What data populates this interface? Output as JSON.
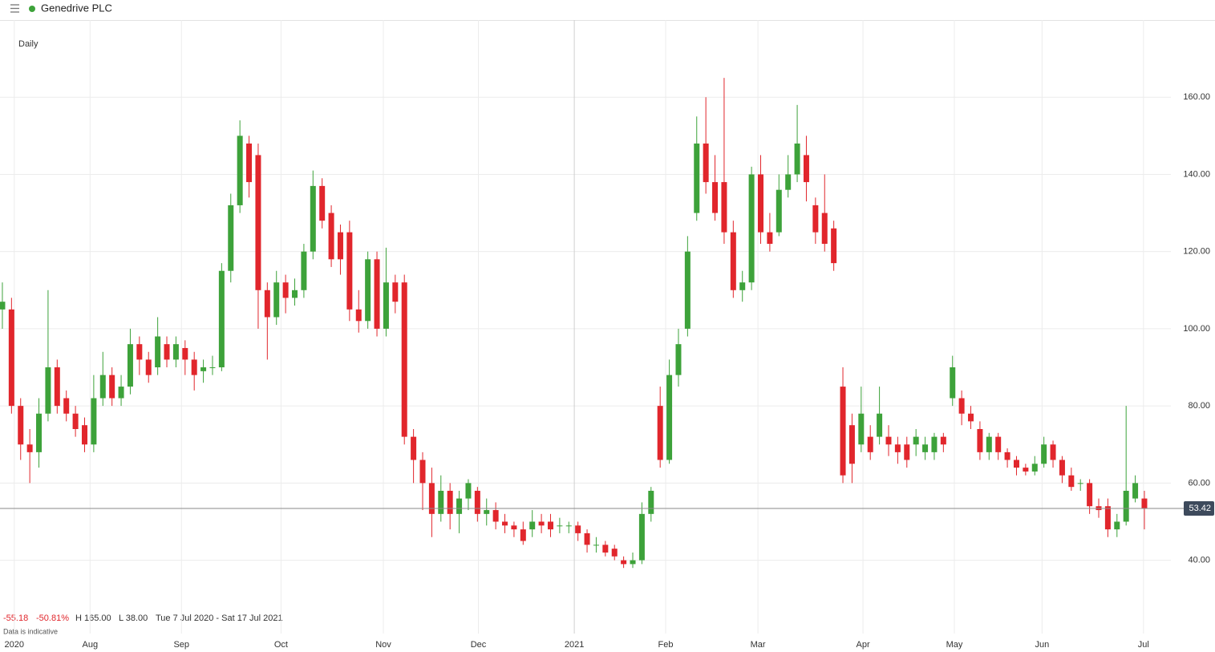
{
  "chart_data": {
    "type": "candlestick",
    "title": "Genedrive PLC",
    "interval": "Daily",
    "stats": {
      "change": -55.18,
      "change_pct": {
        "value": -50.81,
        "label": "-50.81%"
      },
      "high": {
        "value": 165,
        "label": "H 165.00"
      },
      "low": {
        "value": 38,
        "label": "L 38.00"
      },
      "range": "Tue 7 Jul 2020 - Sat 17 Jul 2021"
    },
    "note": "Data is indicative",
    "last_price": 53.42,
    "up_color": "#3da23a",
    "down_color": "#e1262c",
    "grid": true,
    "ylim": [
      21,
      180
    ],
    "yticks": [
      {
        "value": 40,
        "label": "40.00"
      },
      {
        "value": 60,
        "label": "60.00"
      },
      {
        "value": 80,
        "label": "80.00"
      },
      {
        "value": 100,
        "label": "100.00"
      },
      {
        "value": 120,
        "label": "120.00"
      },
      {
        "value": 140,
        "label": "140.00"
      },
      {
        "value": 160,
        "label": "160.00"
      }
    ],
    "xlim": [
      -0.26,
      127.9
    ],
    "xticks": [
      {
        "value": 1.3,
        "label": "2020"
      },
      {
        "value": 9.6,
        "label": "Aug"
      },
      {
        "value": 19.6,
        "label": "Sep"
      },
      {
        "value": 30.5,
        "label": "Oct"
      },
      {
        "value": 41.7,
        "label": "Nov"
      },
      {
        "value": 52.1,
        "label": "Dec"
      },
      {
        "value": 62.6,
        "label": "2021"
      },
      {
        "value": 72.6,
        "label": "Feb"
      },
      {
        "value": 82.7,
        "label": "Mar"
      },
      {
        "value": 94.2,
        "label": "Apr"
      },
      {
        "value": 104.2,
        "label": "May"
      },
      {
        "value": 113.8,
        "label": "Jun"
      },
      {
        "value": 124.9,
        "label": "Jul"
      }
    ],
    "open": [
      105,
      105,
      80,
      70,
      68,
      78,
      90,
      82,
      78,
      75,
      70,
      82,
      88,
      82,
      85,
      96,
      92,
      90,
      96,
      92,
      95,
      92,
      89,
      90,
      90,
      115,
      132,
      148,
      145,
      110,
      103,
      112,
      108,
      110,
      120,
      137,
      130,
      125,
      125,
      105,
      102,
      118,
      100,
      112,
      112,
      72,
      66,
      60,
      52,
      58,
      52,
      56,
      58,
      52,
      53,
      50,
      49,
      48,
      48,
      50,
      50,
      49,
      49,
      49,
      47,
      44,
      44,
      43,
      40,
      39,
      40,
      52,
      80,
      66,
      88,
      100,
      130,
      148,
      138,
      138,
      125,
      110,
      112,
      140,
      125,
      125,
      136,
      140,
      145,
      132,
      130,
      126,
      85,
      75,
      70,
      72,
      72,
      72,
      70,
      70,
      70,
      68,
      68,
      72,
      82,
      82,
      78,
      74,
      68,
      72,
      68,
      66,
      64,
      63,
      65,
      70,
      66,
      62,
      60,
      60,
      54,
      54,
      48,
      50,
      56,
      56
    ],
    "high": [
      112,
      108,
      82,
      74,
      82,
      110,
      92,
      84,
      80,
      77,
      88,
      94,
      90,
      88,
      100,
      98,
      94,
      103,
      98,
      98,
      97,
      94,
      92,
      93,
      117,
      135,
      154,
      150,
      148,
      112,
      115,
      114,
      113,
      122,
      141,
      139,
      132,
      127,
      128,
      110,
      120,
      120,
      121,
      114,
      114,
      74,
      68,
      64,
      62,
      60,
      58,
      61,
      59,
      56,
      55,
      52,
      50,
      50,
      53,
      52,
      52,
      51,
      50,
      50,
      48,
      46,
      45,
      44,
      41,
      42,
      55,
      59,
      85,
      92,
      100,
      124,
      155,
      160,
      145,
      165,
      128,
      115,
      142,
      145,
      130,
      140,
      145,
      158,
      150,
      134,
      140,
      128,
      90,
      78,
      85,
      75,
      85,
      75,
      72,
      72,
      74,
      72,
      73,
      73,
      93,
      84,
      80,
      76,
      73,
      73,
      69,
      67,
      65,
      67,
      72,
      71,
      67,
      64,
      61,
      61,
      56,
      56,
      52,
      80,
      62,
      58
    ],
    "low": [
      100,
      78,
      66,
      60,
      64,
      76,
      78,
      76,
      72,
      68,
      68,
      80,
      80,
      80,
      83,
      88,
      86,
      88,
      90,
      90,
      88,
      84,
      86,
      88,
      89,
      112,
      130,
      134,
      100,
      92,
      101,
      104,
      106,
      108,
      118,
      126,
      116,
      114,
      102,
      99,
      100,
      98,
      98,
      104,
      70,
      60,
      53,
      46,
      50,
      48,
      47,
      53,
      50,
      49,
      48,
      47,
      46,
      44,
      46,
      47,
      46,
      47,
      47,
      45,
      42,
      42,
      41,
      40,
      38,
      38,
      39,
      50,
      64,
      65,
      85,
      98,
      128,
      135,
      128,
      122,
      108,
      107,
      110,
      122,
      120,
      124,
      134,
      138,
      133,
      122,
      120,
      115,
      60,
      60,
      68,
      66,
      70,
      67,
      65,
      64,
      67,
      66,
      66,
      68,
      80,
      75,
      74,
      66,
      66,
      66,
      64,
      62,
      62,
      62,
      64,
      64,
      60,
      58,
      58,
      52,
      51,
      46,
      46,
      49,
      55,
      48
    ],
    "close": [
      107,
      80,
      70,
      68,
      78,
      90,
      80,
      78,
      74,
      70,
      82,
      88,
      82,
      85,
      96,
      92,
      88,
      98,
      92,
      96,
      92,
      88,
      90,
      90,
      115,
      132,
      150,
      138,
      110,
      103,
      112,
      108,
      110,
      120,
      137,
      128,
      118,
      118,
      105,
      102,
      118,
      100,
      112,
      107,
      72,
      66,
      60,
      52,
      58,
      52,
      56,
      60,
      52,
      53,
      50,
      49,
      48,
      45,
      50,
      49,
      48,
      49,
      49,
      47,
      44,
      44,
      42,
      41,
      39,
      40,
      52,
      58,
      66,
      88,
      96,
      120,
      148,
      138,
      130,
      125,
      110,
      112,
      140,
      125,
      122,
      136,
      140,
      148,
      138,
      125,
      122,
      117,
      62,
      65,
      78,
      68,
      78,
      70,
      68,
      66,
      72,
      70,
      72,
      70,
      90,
      78,
      76,
      68,
      72,
      68,
      66,
      64,
      63,
      65,
      70,
      66,
      62,
      59,
      60,
      54,
      53,
      48,
      50,
      58,
      60,
      53.42
    ]
  }
}
